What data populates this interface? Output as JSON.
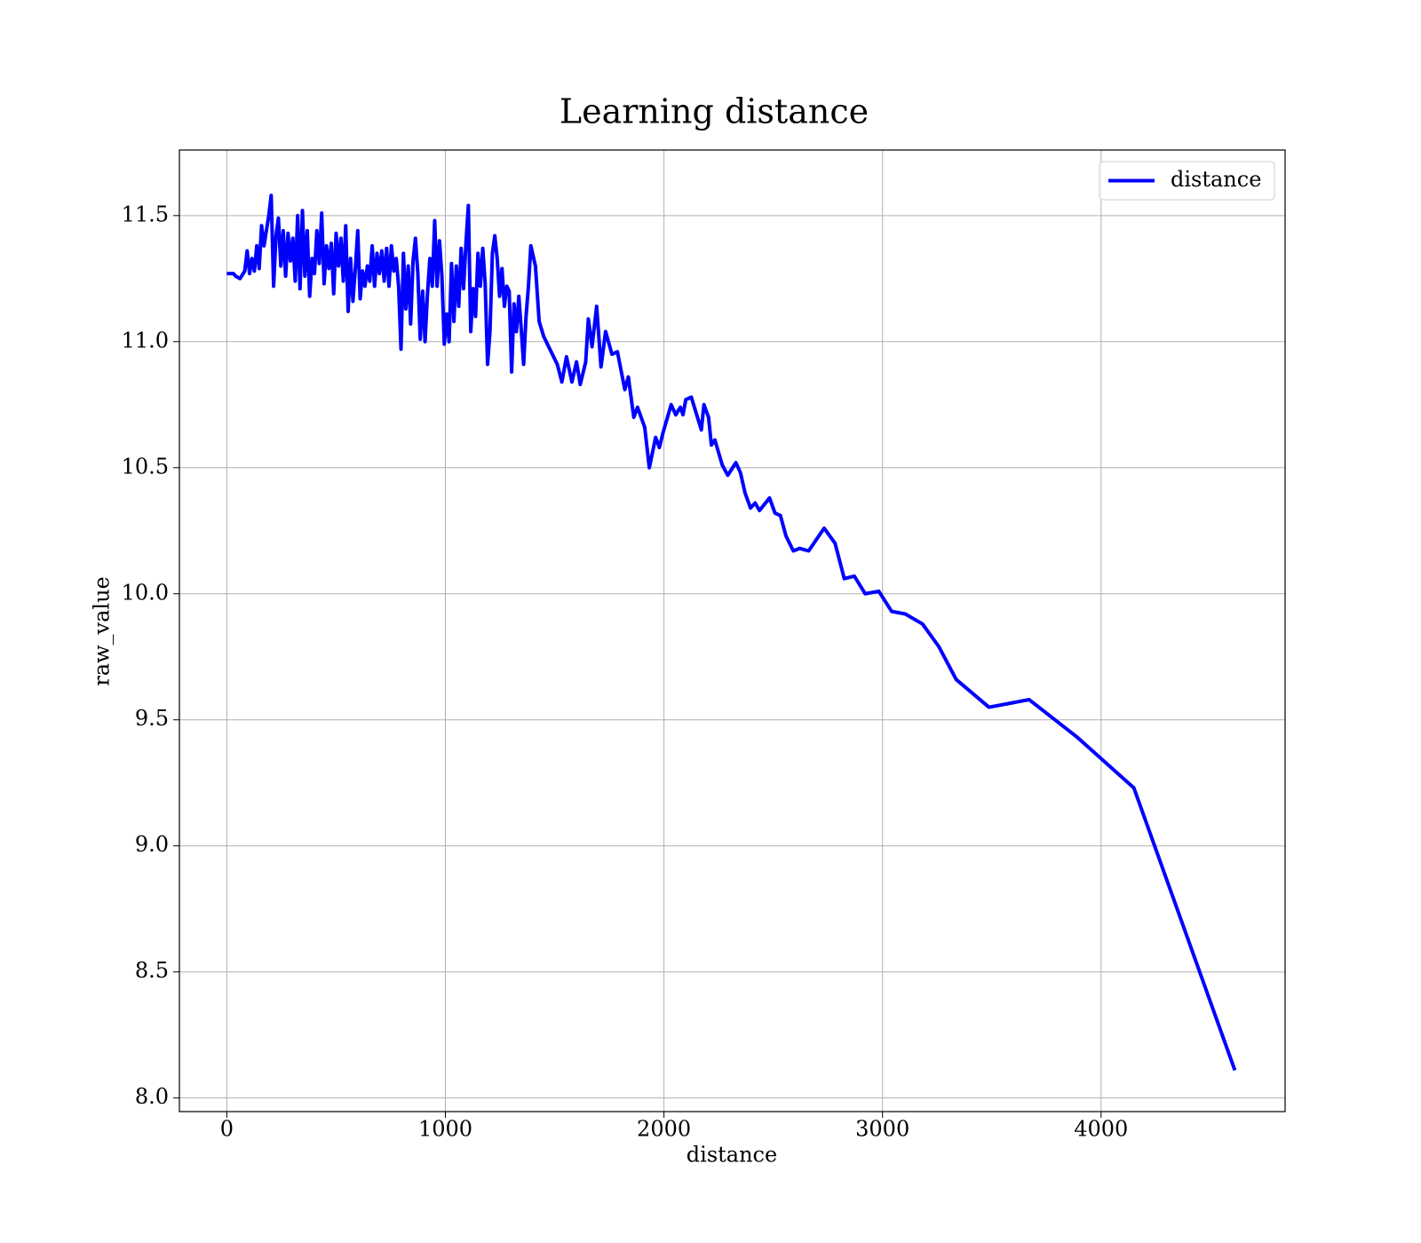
{
  "chart_data": {
    "type": "line",
    "title": "Learning distance",
    "x_label": "distance",
    "y_label": "raw_value",
    "xlim": [
      -217,
      4842
    ],
    "ylim": [
      7.946,
      11.76
    ],
    "xticks": [
      0,
      1000,
      2000,
      3000,
      4000
    ],
    "yticks": [
      {
        "value": 8,
        "label": "8.0"
      },
      8.5,
      {
        "value": 9,
        "label": "9.0"
      },
      9.5,
      {
        "value": 10,
        "label": "10.0"
      },
      10.5,
      {
        "value": 11,
        "label": "11.0"
      },
      11.5
    ],
    "grid": true,
    "legend": "upper right",
    "x": [
      0,
      30,
      40,
      60,
      82,
      93,
      104,
      115,
      126,
      137,
      148,
      159,
      170,
      181,
      192,
      203,
      214,
      225,
      236,
      247,
      258,
      269,
      280,
      291,
      302,
      313,
      324,
      335,
      346,
      357,
      368,
      379,
      390,
      401,
      412,
      423,
      434,
      445,
      456,
      467,
      478,
      489,
      500,
      511,
      522,
      533,
      544,
      555,
      566,
      577,
      588,
      599,
      610,
      621,
      632,
      643,
      654,
      665,
      676,
      687,
      698,
      709,
      720,
      731,
      742,
      753,
      764,
      775,
      786,
      797,
      808,
      819,
      830,
      841,
      852,
      863,
      874,
      885,
      896,
      907,
      918,
      929,
      940,
      951,
      962,
      973,
      984,
      995,
      1006,
      1017,
      1028,
      1039,
      1050,
      1061,
      1072,
      1083,
      1094,
      1105,
      1116,
      1127,
      1138,
      1149,
      1160,
      1171,
      1182,
      1193,
      1204,
      1215,
      1226,
      1237,
      1248,
      1259,
      1270,
      1281,
      1292,
      1303,
      1314,
      1325,
      1336,
      1347,
      1358,
      1369,
      1380,
      1391,
      1412,
      1429,
      1450,
      1512,
      1533,
      1554,
      1579,
      1600,
      1617,
      1642,
      1654,
      1671,
      1692,
      1712,
      1733,
      1762,
      1787,
      1821,
      1837,
      1862,
      1879,
      1912,
      1933,
      1962,
      1979,
      1996,
      2033,
      2054,
      2075,
      2087,
      2100,
      2125,
      2171,
      2183,
      2204,
      2217,
      2233,
      2267,
      2292,
      2329,
      2350,
      2371,
      2396,
      2417,
      2437,
      2483,
      2508,
      2533,
      2558,
      2592,
      2621,
      2662,
      2733,
      2783,
      2825,
      2871,
      2921,
      2983,
      3042,
      3104,
      3183,
      3258,
      3337,
      3487,
      3671,
      3892,
      4150,
      4612
    ],
    "series": [
      {
        "name": "distance",
        "color": "#0000ff",
        "values": [
          11.27,
          11.27,
          11.26,
          11.25,
          11.28,
          11.36,
          11.27,
          11.33,
          11.28,
          11.38,
          11.29,
          11.46,
          11.38,
          11.44,
          11.5,
          11.58,
          11.22,
          11.42,
          11.49,
          11.3,
          11.44,
          11.26,
          11.43,
          11.32,
          11.41,
          11.24,
          11.5,
          11.21,
          11.52,
          11.26,
          11.44,
          11.18,
          11.33,
          11.27,
          11.44,
          11.31,
          11.51,
          11.23,
          11.38,
          11.29,
          11.39,
          11.19,
          11.43,
          11.3,
          11.41,
          11.24,
          11.46,
          11.12,
          11.33,
          11.16,
          11.29,
          11.44,
          11.17,
          11.28,
          11.22,
          11.3,
          11.24,
          11.38,
          11.22,
          11.35,
          11.27,
          11.36,
          11.24,
          11.37,
          11.22,
          11.38,
          11.28,
          11.33,
          11.22,
          10.97,
          11.35,
          11.13,
          11.3,
          11.07,
          11.32,
          11.41,
          11.27,
          11.01,
          11.2,
          11.0,
          11.19,
          11.33,
          11.22,
          11.48,
          11.22,
          11.4,
          11.26,
          10.99,
          11.11,
          11.0,
          11.31,
          11.08,
          11.3,
          11.14,
          11.37,
          11.21,
          11.39,
          11.54,
          11.04,
          11.21,
          11.1,
          11.35,
          11.22,
          11.37,
          11.23,
          10.91,
          11.04,
          11.35,
          11.42,
          11.33,
          11.18,
          11.29,
          11.14,
          11.22,
          11.2,
          10.88,
          11.15,
          11.04,
          11.18,
          11.05,
          10.91,
          11.1,
          11.22,
          11.38,
          11.3,
          11.08,
          11.02,
          10.91,
          10.84,
          10.94,
          10.84,
          10.92,
          10.83,
          10.92,
          11.09,
          10.98,
          11.14,
          10.9,
          11.04,
          10.95,
          10.96,
          10.81,
          10.86,
          10.7,
          10.74,
          10.66,
          10.5,
          10.62,
          10.58,
          10.64,
          10.75,
          10.71,
          10.74,
          10.71,
          10.77,
          10.78,
          10.65,
          10.75,
          10.7,
          10.59,
          10.61,
          10.51,
          10.47,
          10.52,
          10.48,
          10.4,
          10.34,
          10.36,
          10.33,
          10.38,
          10.32,
          10.31,
          10.23,
          10.17,
          10.18,
          10.17,
          10.26,
          10.2,
          10.06,
          10.07,
          10.0,
          10.01,
          9.93,
          9.92,
          9.88,
          9.79,
          9.66,
          9.55,
          9.58,
          9.43,
          9.23,
          8.11
        ]
      }
    ]
  }
}
